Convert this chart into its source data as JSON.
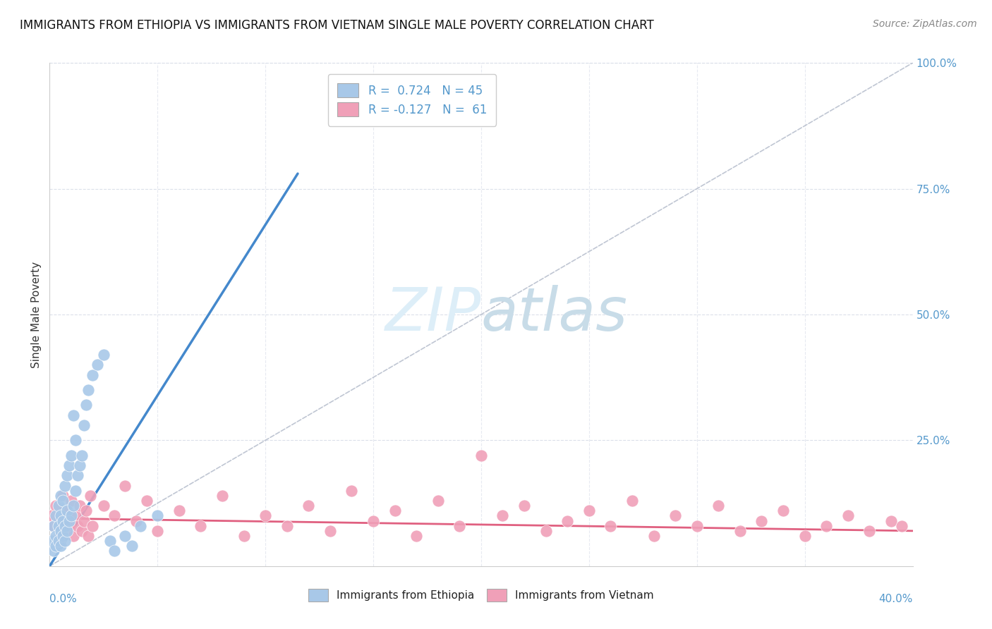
{
  "title": "IMMIGRANTS FROM ETHIOPIA VS IMMIGRANTS FROM VIETNAM SINGLE MALE POVERTY CORRELATION CHART",
  "source": "Source: ZipAtlas.com",
  "ylabel": "Single Male Poverty",
  "yticks": [
    0.0,
    0.25,
    0.5,
    0.75,
    1.0
  ],
  "ytick_labels": [
    "",
    "25.0%",
    "50.0%",
    "75.0%",
    "100.0%"
  ],
  "xlim": [
    0.0,
    0.4
  ],
  "ylim": [
    0.0,
    1.0
  ],
  "ethiopia_R": 0.724,
  "ethiopia_N": 45,
  "vietnam_R": -0.127,
  "vietnam_N": 61,
  "ethiopia_color": "#a8c8e8",
  "vietnam_color": "#f0a0b8",
  "ethiopia_line_color": "#4488cc",
  "vietnam_line_color": "#e06080",
  "ref_line_color": "#b0b8c8",
  "background_color": "#ffffff",
  "watermark_text": "ZIPatlas",
  "watermark_color": "#ddeef8",
  "ethiopia_scatter_x": [
    0.001,
    0.002,
    0.002,
    0.003,
    0.003,
    0.003,
    0.004,
    0.004,
    0.004,
    0.005,
    0.005,
    0.005,
    0.005,
    0.006,
    0.006,
    0.006,
    0.007,
    0.007,
    0.007,
    0.008,
    0.008,
    0.008,
    0.009,
    0.009,
    0.01,
    0.01,
    0.011,
    0.011,
    0.012,
    0.012,
    0.013,
    0.014,
    0.015,
    0.016,
    0.017,
    0.018,
    0.02,
    0.022,
    0.025,
    0.028,
    0.03,
    0.035,
    0.038,
    0.042,
    0.05
  ],
  "ethiopia_scatter_y": [
    0.05,
    0.03,
    0.08,
    0.06,
    0.04,
    0.1,
    0.05,
    0.08,
    0.12,
    0.04,
    0.07,
    0.1,
    0.14,
    0.06,
    0.09,
    0.13,
    0.05,
    0.08,
    0.16,
    0.07,
    0.11,
    0.18,
    0.09,
    0.2,
    0.1,
    0.22,
    0.12,
    0.3,
    0.15,
    0.25,
    0.18,
    0.2,
    0.22,
    0.28,
    0.32,
    0.35,
    0.38,
    0.4,
    0.42,
    0.05,
    0.03,
    0.06,
    0.04,
    0.08,
    0.1
  ],
  "vietnam_scatter_x": [
    0.001,
    0.002,
    0.003,
    0.004,
    0.005,
    0.006,
    0.007,
    0.008,
    0.009,
    0.01,
    0.011,
    0.012,
    0.013,
    0.014,
    0.015,
    0.016,
    0.017,
    0.018,
    0.019,
    0.02,
    0.025,
    0.03,
    0.035,
    0.04,
    0.045,
    0.05,
    0.06,
    0.07,
    0.08,
    0.09,
    0.1,
    0.11,
    0.12,
    0.13,
    0.14,
    0.15,
    0.16,
    0.17,
    0.18,
    0.19,
    0.2,
    0.21,
    0.22,
    0.23,
    0.24,
    0.25,
    0.26,
    0.27,
    0.28,
    0.29,
    0.3,
    0.31,
    0.32,
    0.33,
    0.34,
    0.35,
    0.36,
    0.37,
    0.38,
    0.39,
    0.395
  ],
  "vietnam_scatter_y": [
    0.1,
    0.08,
    0.12,
    0.09,
    0.06,
    0.14,
    0.07,
    0.11,
    0.08,
    0.13,
    0.06,
    0.1,
    0.08,
    0.12,
    0.07,
    0.09,
    0.11,
    0.06,
    0.14,
    0.08,
    0.12,
    0.1,
    0.16,
    0.09,
    0.13,
    0.07,
    0.11,
    0.08,
    0.14,
    0.06,
    0.1,
    0.08,
    0.12,
    0.07,
    0.15,
    0.09,
    0.11,
    0.06,
    0.13,
    0.08,
    0.22,
    0.1,
    0.12,
    0.07,
    0.09,
    0.11,
    0.08,
    0.13,
    0.06,
    0.1,
    0.08,
    0.12,
    0.07,
    0.09,
    0.11,
    0.06,
    0.08,
    0.1,
    0.07,
    0.09,
    0.08
  ],
  "ethiopia_line_x": [
    0.0,
    0.115
  ],
  "ethiopia_line_y": [
    0.0,
    0.78
  ],
  "vietnam_line_x": [
    0.0,
    0.4
  ],
  "vietnam_line_y": [
    0.095,
    0.07
  ]
}
